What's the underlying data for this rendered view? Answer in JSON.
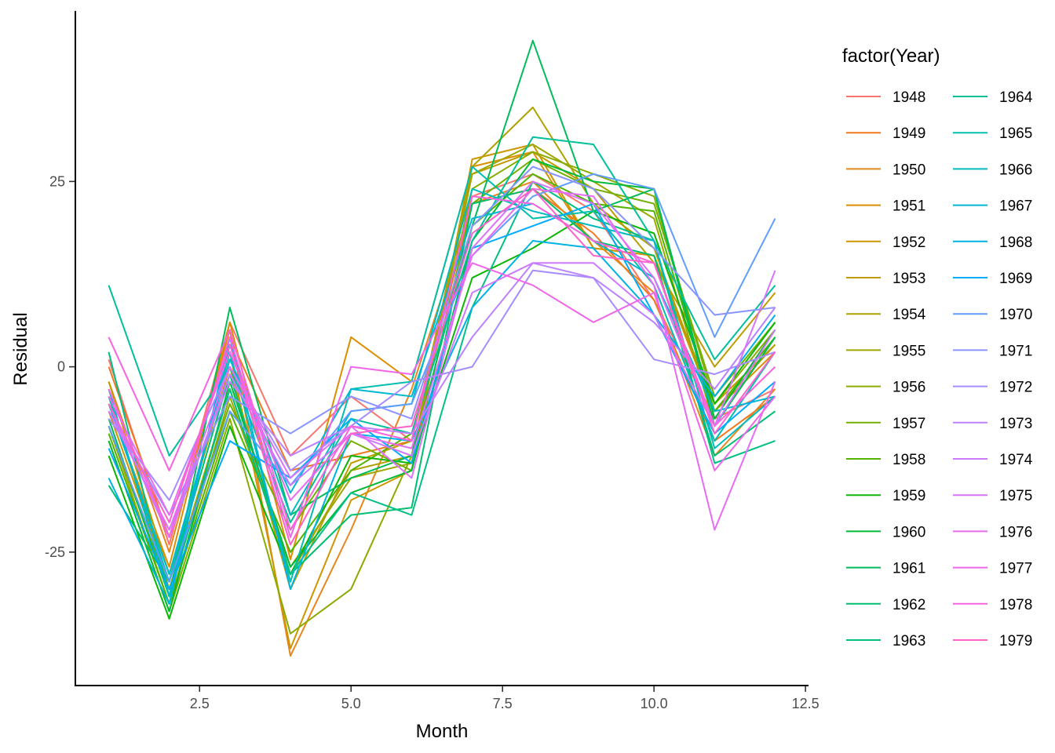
{
  "chart_data": {
    "type": "line",
    "xlabel": "Month",
    "ylabel": "Residual",
    "legend_title": "factor(Year)",
    "legend_position": "right",
    "grid": false,
    "xlim": [
      0.45,
      12.55
    ],
    "ylim": [
      -43.0,
      48.0
    ],
    "x_ticks": [
      2.5,
      5.0,
      7.5,
      10.0,
      12.5
    ],
    "x_tick_labels": [
      "2.5",
      "5.0",
      "7.5",
      "10.0",
      "12.5"
    ],
    "y_ticks": [
      -25,
      0,
      25
    ],
    "y_tick_labels": [
      "-25",
      "0",
      "25"
    ],
    "x": [
      1,
      2,
      3,
      4,
      5,
      6,
      7,
      8,
      9,
      10,
      11,
      12
    ],
    "series": [
      {
        "name": "1948",
        "color": "#F8766D",
        "values": [
          1,
          -24,
          6,
          -12,
          -4,
          -10,
          23,
          26,
          21,
          9,
          -7,
          -3
        ]
      },
      {
        "name": "1949",
        "color": "#F0781F",
        "values": [
          0,
          -23,
          4,
          -14,
          -12,
          -10,
          22,
          24,
          18,
          9,
          -10,
          -4
        ]
      },
      {
        "name": "1950",
        "color": "#E7861B",
        "values": [
          -2,
          -25,
          5,
          -39,
          -22,
          -3,
          22,
          25,
          17,
          10,
          -12,
          -3
        ]
      },
      {
        "name": "1951",
        "color": "#DB8E00",
        "values": [
          -5,
          -27,
          6,
          -26,
          4,
          -2,
          27,
          29,
          16,
          15,
          -6,
          2
        ]
      },
      {
        "name": "1952",
        "color": "#CD9600",
        "values": [
          -6,
          -29,
          2,
          -38,
          -18,
          -14,
          28,
          30,
          16,
          15,
          -5,
          3
        ]
      },
      {
        "name": "1953",
        "color": "#BE9C00",
        "values": [
          -2,
          -28,
          0,
          -30,
          -13,
          -10,
          26,
          29,
          24,
          14,
          0,
          10
        ]
      },
      {
        "name": "1954",
        "color": "#AEA200",
        "values": [
          -4,
          -30,
          -3,
          -28,
          -14,
          -12,
          27,
          35,
          22,
          16,
          -6,
          3
        ]
      },
      {
        "name": "1955",
        "color": "#9DA700",
        "values": [
          -8,
          -32,
          -4,
          -27,
          -15,
          -13,
          26,
          30,
          25,
          20,
          -8,
          4
        ]
      },
      {
        "name": "1956",
        "color": "#8AAB00",
        "values": [
          -10,
          -33,
          -7,
          -36,
          -30,
          -12,
          24,
          29,
          26,
          23,
          -5,
          5
        ]
      },
      {
        "name": "1957",
        "color": "#72B000",
        "values": [
          -8,
          -30,
          -5,
          -22,
          -10,
          -14,
          22,
          28,
          24,
          22,
          -4,
          6
        ]
      },
      {
        "name": "1958",
        "color": "#53B400",
        "values": [
          -9,
          -32,
          -6,
          -25,
          -14,
          -9,
          19,
          26,
          22,
          21,
          -6,
          4
        ]
      },
      {
        "name": "1959",
        "color": "#0BB702",
        "values": [
          -12,
          -34,
          -8,
          -28,
          -12,
          -13,
          12,
          16,
          21,
          18,
          -5,
          6
        ]
      },
      {
        "name": "1960",
        "color": "#00BA38",
        "values": [
          -10,
          -33,
          -2,
          -27,
          -17,
          -14,
          17,
          28,
          25,
          24,
          -7,
          5
        ]
      },
      {
        "name": "1961",
        "color": "#00BC59",
        "values": [
          -7,
          -31,
          8,
          -20,
          -15,
          -12,
          19,
          44,
          21,
          24,
          -8,
          4
        ]
      },
      {
        "name": "1962",
        "color": "#00BE71",
        "values": [
          -16,
          -29,
          -1,
          -28,
          -20,
          -19,
          22,
          24,
          17,
          15,
          -12,
          -6
        ]
      },
      {
        "name": "1963",
        "color": "#00C086",
        "values": [
          2,
          -31,
          -3,
          -28,
          -17,
          -20,
          8,
          25,
          20,
          17,
          -13,
          -10
        ]
      },
      {
        "name": "1964",
        "color": "#00C09B",
        "values": [
          11,
          -12,
          0,
          -21,
          -7,
          -9,
          17,
          31,
          30,
          17,
          1,
          11
        ]
      },
      {
        "name": "1965",
        "color": "#00BFAE",
        "values": [
          -4,
          -29,
          2,
          -29,
          -3,
          -2,
          27,
          20,
          21,
          11,
          -10,
          2
        ]
      },
      {
        "name": "1966",
        "color": "#00BCC1",
        "values": [
          -3,
          -31,
          3,
          -20,
          -6,
          -5,
          24,
          21,
          19,
          17,
          -11,
          -4
        ]
      },
      {
        "name": "1967",
        "color": "#00B8D3",
        "values": [
          -5,
          -28,
          1,
          -17,
          -3,
          -4,
          20,
          22,
          17,
          12,
          -6,
          -4
        ]
      },
      {
        "name": "1968",
        "color": "#00B3E3",
        "values": [
          -15,
          -32,
          4,
          -30,
          -9,
          -10,
          8,
          17,
          16,
          7,
          -4,
          7
        ]
      },
      {
        "name": "1969",
        "color": "#00ABFD",
        "values": [
          -11,
          -30,
          -10,
          -15,
          -7,
          -13,
          16,
          19,
          22,
          7,
          -9,
          -2
        ]
      },
      {
        "name": "1970",
        "color": "#619CFF",
        "values": [
          -8,
          -29,
          -6,
          -16,
          -6,
          -5,
          15,
          23,
          26,
          24,
          4,
          20
        ]
      },
      {
        "name": "1971",
        "color": "#8A94FF",
        "values": [
          -6,
          -20,
          -4,
          -9,
          -4,
          -7,
          19,
          27,
          24,
          16,
          7,
          8
        ]
      },
      {
        "name": "1972",
        "color": "#A68CFF",
        "values": [
          -7,
          -18,
          0,
          -14,
          -8,
          -2,
          0,
          13,
          12,
          1,
          -1,
          2
        ]
      },
      {
        "name": "1973",
        "color": "#BC81FF",
        "values": [
          -6,
          -22,
          -2,
          -12,
          -8,
          -9,
          4,
          14,
          12,
          6,
          -3,
          8
        ]
      },
      {
        "name": "1974",
        "color": "#CD79FF",
        "values": [
          -5,
          -23,
          -1,
          -16,
          -9,
          -12,
          10,
          14,
          14,
          7,
          -8,
          5
        ]
      },
      {
        "name": "1975",
        "color": "#DB72FB",
        "values": [
          -6,
          -22,
          0,
          -15,
          -8,
          -15,
          16,
          25,
          22,
          12,
          -8,
          13
        ]
      },
      {
        "name": "1976",
        "color": "#E76BF3",
        "values": [
          -4,
          -20,
          2,
          -18,
          -9,
          -11,
          15,
          24,
          23,
          11,
          -22,
          -2
        ]
      },
      {
        "name": "1977",
        "color": "#F066EA",
        "values": [
          -3,
          -23,
          4,
          -23,
          0,
          -1,
          14,
          11,
          6,
          10,
          -14,
          -4
        ]
      },
      {
        "name": "1978",
        "color": "#F863DF",
        "values": [
          4,
          -14,
          5,
          -22,
          -8,
          -10,
          23,
          22,
          17,
          14,
          -8,
          0
        ]
      },
      {
        "name": "1979",
        "color": "#FF61C9",
        "values": [
          -5,
          -21,
          3,
          -24,
          -9,
          -8,
          18,
          24,
          15,
          14,
          -9,
          2
        ]
      }
    ]
  }
}
